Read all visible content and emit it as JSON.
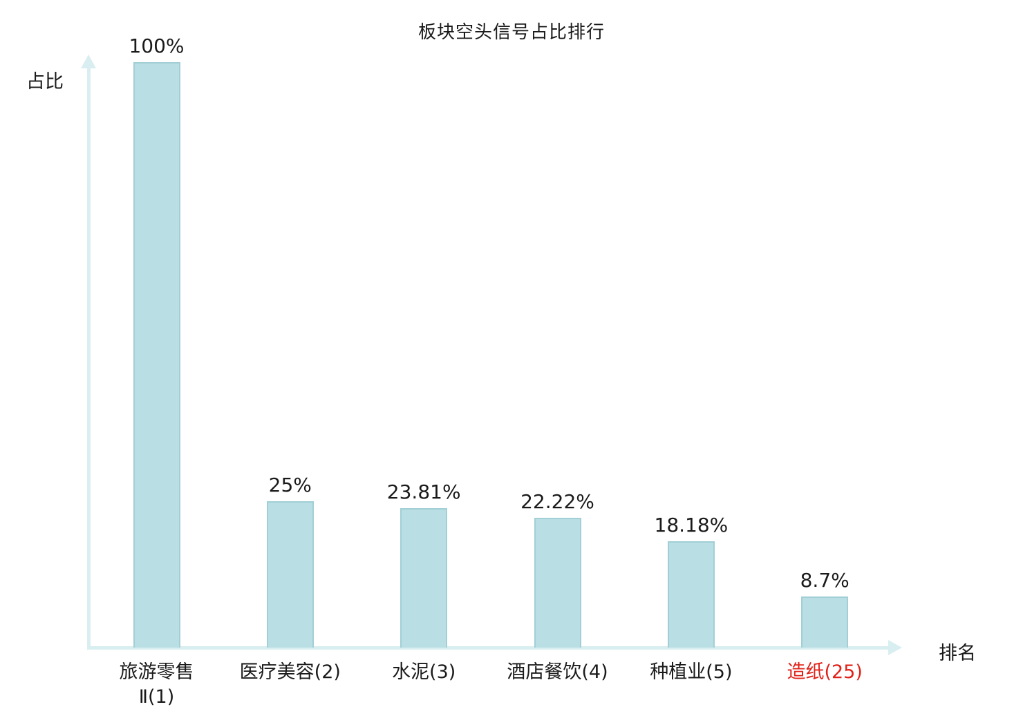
{
  "chart_data": {
    "type": "bar",
    "title": "板块空头信号占比排行",
    "xlabel": "排名",
    "ylabel": "占比",
    "ylim": [
      0,
      100
    ],
    "grid": false,
    "legend": null,
    "bar_color": "#b9dee3",
    "bar_border_color": "#a2cfd6",
    "axis_color": "#d9eef0",
    "label_color": "#1a1a1a",
    "highlight_color": "#e02219",
    "categories": [
      "旅游零售Ⅱ(1)",
      "医疗美容(2)",
      "水泥(3)",
      "酒店餐饮(4)",
      "种植业(5)",
      "造纸(25)"
    ],
    "values": [
      100,
      25,
      23.81,
      22.22,
      18.18,
      8.7
    ],
    "bars": [
      {
        "category_lines": [
          "旅游零售",
          "Ⅱ(1)"
        ],
        "value": 100,
        "value_label": "100%",
        "highlight": false
      },
      {
        "category_lines": [
          "医疗美容(2)"
        ],
        "value": 25,
        "value_label": "25%",
        "highlight": false
      },
      {
        "category_lines": [
          "水泥(3)"
        ],
        "value": 23.81,
        "value_label": "23.81%",
        "highlight": false
      },
      {
        "category_lines": [
          "酒店餐饮(4)"
        ],
        "value": 22.22,
        "value_label": "22.22%",
        "highlight": false
      },
      {
        "category_lines": [
          "种植业(5)"
        ],
        "value": 18.18,
        "value_label": "18.18%",
        "highlight": false
      },
      {
        "category_lines": [
          "造纸(25)"
        ],
        "value": 8.7,
        "value_label": "8.7%",
        "highlight": true
      }
    ]
  }
}
